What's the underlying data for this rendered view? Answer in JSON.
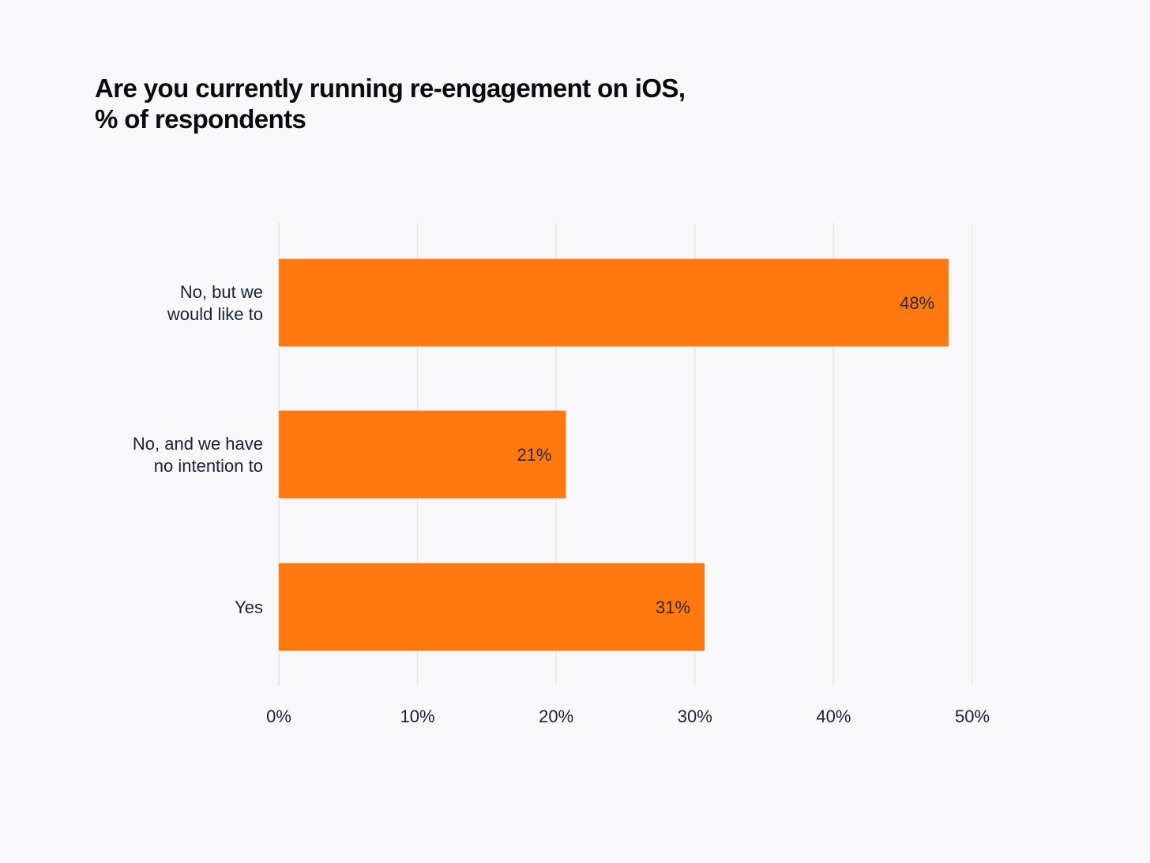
{
  "title": {
    "line1": "Are you currently running re-engagement on iOS,",
    "line2": "% of respondents"
  },
  "colors": {
    "bar": "#ff7810",
    "grid": "#e9e8e0",
    "background": "#f8f8fa"
  },
  "chart_data": {
    "type": "bar",
    "orientation": "horizontal",
    "title": "Are you currently running re-engagement on iOS, % of respondents",
    "categories": [
      [
        "No, but we",
        "would like to"
      ],
      [
        "No, and we have",
        "no intention to"
      ],
      [
        "Yes"
      ]
    ],
    "values": [
      48.3,
      20.7,
      30.7
    ],
    "data_labels": [
      "48%",
      "21%",
      "31%"
    ],
    "xlim": [
      0,
      50
    ],
    "xticks": [
      0,
      10,
      20,
      30,
      40,
      50
    ],
    "xtick_labels": [
      "0%",
      "10%",
      "20%",
      "30%",
      "40%",
      "50%"
    ],
    "xlabel": "",
    "ylabel": "",
    "grid": true,
    "legend": "none"
  }
}
